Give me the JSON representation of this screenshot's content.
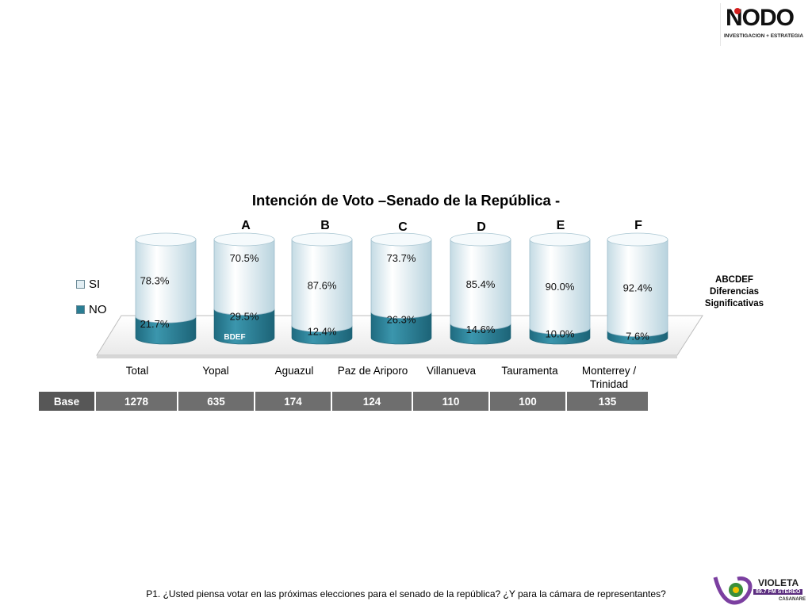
{
  "logo": {
    "name": "NODO",
    "tagline": "INVESTIGACION + ESTRATEGIA"
  },
  "chart_data": {
    "type": "bar",
    "stacked": true,
    "title": "Intención de Voto –Senado de la República -",
    "categories": [
      "Total",
      "Yopal",
      "Aguazul",
      "Paz de Ariporo",
      "Villanueva",
      "Tauramenta",
      "Monterrey / Trinidad"
    ],
    "column_letters": [
      "",
      "A",
      "B",
      "C",
      "D",
      "E",
      "F"
    ],
    "series": [
      {
        "name": "SI",
        "values": [
          78.3,
          70.5,
          87.6,
          73.7,
          85.4,
          90.0,
          92.4
        ],
        "labels": [
          "78.3%",
          "70.5%",
          "87.6%",
          "73.7%",
          "85.4%",
          "90.0%",
          "92.4%"
        ],
        "color": "#e2eef3"
      },
      {
        "name": "NO",
        "values": [
          21.7,
          29.5,
          12.4,
          26.3,
          14.6,
          10.0,
          7.6
        ],
        "labels": [
          "21.7%",
          "29.5%",
          "12.4%",
          "26.3%",
          "14.6%",
          "10.0%",
          "7.6%"
        ],
        "color": "#2a7d93"
      }
    ],
    "ylim": [
      0,
      100
    ],
    "legend_position": "left",
    "annotations": [
      {
        "category": "Yopal",
        "text": "BDEF"
      }
    ]
  },
  "significance_note": {
    "line1": "ABCDEF",
    "line2": "Diferencias",
    "line3": "Significativas"
  },
  "base": {
    "label": "Base",
    "values": [
      "1278",
      "635",
      "174",
      "124",
      "110",
      "100",
      "135"
    ]
  },
  "question": "P1. ¿Usted piensa votar en las próximas elecciones para el senado de la república? ¿Y para la cámara de representantes?",
  "footer_logo": {
    "name": "VIOLETA",
    "band": "89.7 FM STEREO",
    "sub": "CASANARE"
  }
}
